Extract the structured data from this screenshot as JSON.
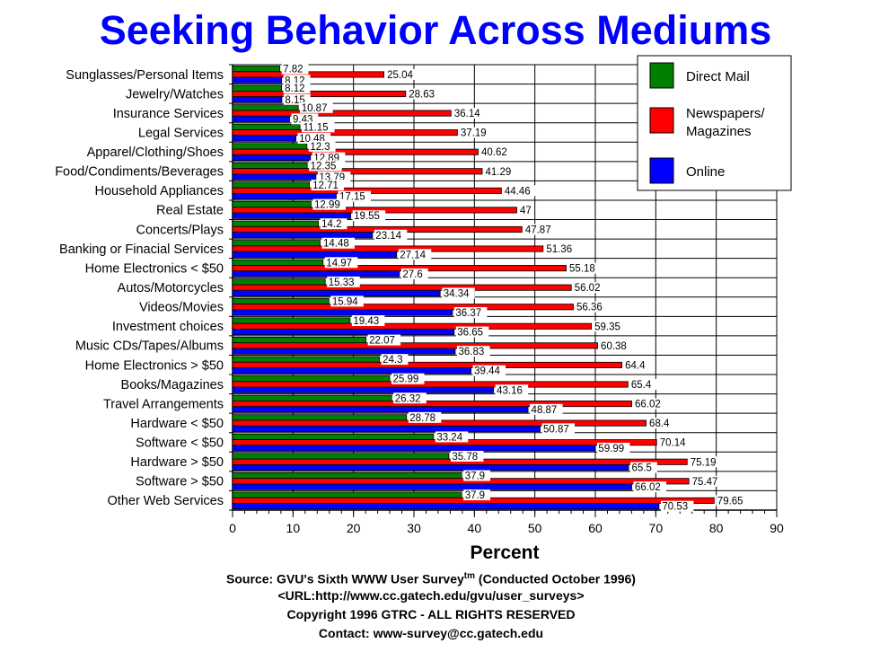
{
  "chart_data": {
    "type": "bar",
    "orientation": "horizontal",
    "title": "Seeking Behavior Across Mediums",
    "xlabel": "Percent",
    "ylabel": "",
    "xlim": [
      0,
      90
    ],
    "xticks": [
      0,
      10,
      20,
      30,
      40,
      50,
      60,
      70,
      80,
      90
    ],
    "grid": true,
    "legend_position": "top-right",
    "categories": [
      "Sunglasses/Personal Items",
      "Jewelry/Watches",
      "Insurance Services",
      "Legal Services",
      "Apparel/Clothing/Shoes",
      "Food/Condiments/Beverages",
      "Household Appliances",
      "Real Estate",
      "Concerts/Plays",
      "Banking or Finacial Services",
      "Home Electronics < $50",
      "Autos/Motorcycles",
      "Videos/Movies",
      "Investment choices",
      "Music CDs/Tapes/Albums",
      "Home Electronics > $50",
      "Books/Magazines",
      "Travel Arrangements",
      "Hardware < $50",
      "Software < $50",
      "Hardware > $50",
      "Software > $50",
      "Other Web Services"
    ],
    "series": [
      {
        "name": "Direct Mail",
        "color": "#008000",
        "values": [
          7.82,
          8.12,
          10.87,
          11.15,
          12.3,
          12.35,
          12.71,
          12.99,
          14.2,
          14.48,
          14.97,
          15.33,
          15.94,
          19.43,
          22.07,
          24.3,
          25.99,
          26.32,
          28.78,
          33.24,
          35.78,
          37.9,
          37.9
        ]
      },
      {
        "name": "Newspapers/ Magazines",
        "color": "#ff0000",
        "values": [
          25.04,
          28.63,
          36.14,
          37.19,
          40.62,
          41.29,
          44.46,
          47,
          47.87,
          51.36,
          55.18,
          56.02,
          56.36,
          59.35,
          60.38,
          64.4,
          65.4,
          66.02,
          68.4,
          70.14,
          75.19,
          75.47,
          79.65
        ]
      },
      {
        "name": "Online",
        "color": "#0000ff",
        "values": [
          8.12,
          8.15,
          9.43,
          10.48,
          12.89,
          13.79,
          17.15,
          19.55,
          23.14,
          27.14,
          27.6,
          34.34,
          36.37,
          36.65,
          36.83,
          39.44,
          43.16,
          48.87,
          50.87,
          59.99,
          65.5,
          66.02,
          70.53
        ]
      }
    ]
  },
  "legend": {
    "direct_mail": "Direct Mail",
    "newspapers_line1": "Newspapers/",
    "newspapers_line2": "Magazines",
    "online": "Online"
  },
  "footer": {
    "source_prefix": "Source: GVU's Sixth WWW User Survey",
    "tm": "tm",
    "source_suffix": " (Conducted October 1996)",
    "url": "<URL:http://www.cc.gatech.edu/gvu/user_surveys>",
    "copyright": "Copyright 1996 GTRC - ALL RIGHTS RESERVED",
    "contact": "Contact: www-survey@cc.gatech.edu"
  }
}
